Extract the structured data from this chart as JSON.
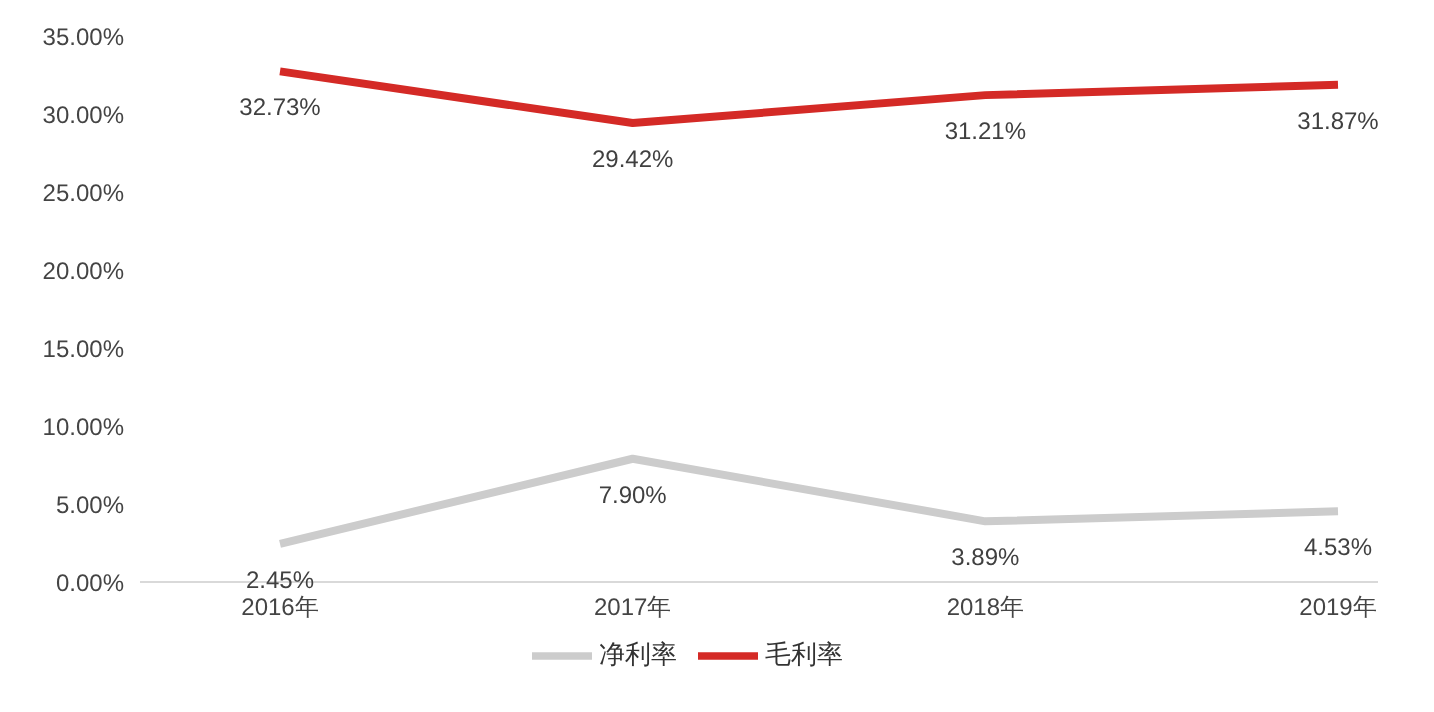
{
  "chart_data": {
    "type": "line",
    "categories": [
      "2016年",
      "2017年",
      "2018年",
      "2019年"
    ],
    "series": [
      {
        "name": "毛利率",
        "color": "#d42a26",
        "values": [
          32.73,
          29.42,
          31.21,
          31.87
        ],
        "value_labels": [
          "32.73%",
          "29.42%",
          "31.21%",
          "31.87%"
        ]
      },
      {
        "name": "净利率",
        "color": "#cccccc",
        "values": [
          2.45,
          7.9,
          3.89,
          4.53
        ],
        "value_labels": [
          "2.45%",
          "7.90%",
          "3.89%",
          "4.53%"
        ]
      }
    ],
    "ylim": [
      0,
      35
    ],
    "yticks": [
      {
        "value": 0,
        "label": "0.00%"
      },
      {
        "value": 5,
        "label": "5.00%"
      },
      {
        "value": 10,
        "label": "10.00%"
      },
      {
        "value": 15,
        "label": "15.00%"
      },
      {
        "value": 20,
        "label": "20.00%"
      },
      {
        "value": 25,
        "label": "25.00%"
      },
      {
        "value": 30,
        "label": "30.00%"
      },
      {
        "value": 35,
        "label": "35.00%"
      }
    ],
    "grid": false,
    "legend": "bottom",
    "marker": "none",
    "line_style": "solid"
  }
}
